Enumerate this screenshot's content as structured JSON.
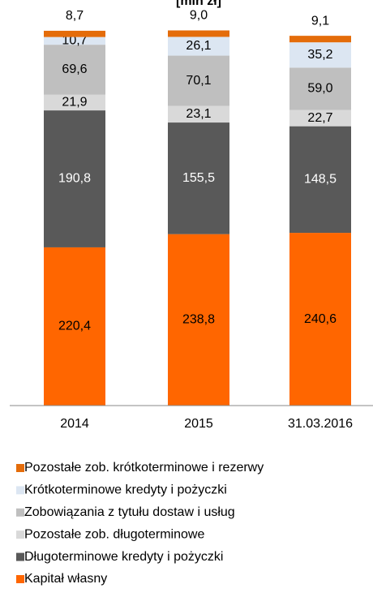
{
  "chart_data": {
    "type": "stacked_bar",
    "title": "[mln zł]",
    "categories": [
      "2014",
      "2015",
      "31.03.2016"
    ],
    "series": [
      {
        "name": "Kapitał własny",
        "color": "#ff6600",
        "values": [
          220.4,
          238.8,
          240.6
        ],
        "value_labels": [
          "220,4",
          "238,8",
          "240,6"
        ]
      },
      {
        "name": "Długoterminowe kredyty i pożyczki",
        "color": "#595959",
        "values": [
          190.8,
          155.5,
          148.5
        ],
        "value_labels": [
          "190,8",
          "155,5",
          "148,5"
        ]
      },
      {
        "name": "Pozostałe zob. długoterminowe",
        "color": "#d9d9d9",
        "values": [
          21.9,
          23.1,
          22.7
        ],
        "value_labels": [
          "21,9",
          "23,1",
          "22,7"
        ]
      },
      {
        "name": "Zobowiązania z tytułu dostaw i usług",
        "color": "#bfbfbf",
        "values": [
          69.6,
          70.1,
          59.0
        ],
        "value_labels": [
          "69,6",
          "70,1",
          "59,0"
        ]
      },
      {
        "name": "Krótkoterminowe kredyty i pożyczki",
        "color": "#dce6f2",
        "values": [
          10.7,
          26.1,
          35.2
        ],
        "value_labels": [
          "10,7",
          "26,1",
          "35,2"
        ]
      },
      {
        "name": "Pozostałe zob. krótkoterminowe i rezerwy",
        "color": "#e46c0a",
        "values": [
          8.7,
          9.0,
          9.1
        ],
        "value_labels": [
          "8,7",
          "9,0",
          "9,1"
        ]
      }
    ],
    "ylim": [
      0,
      540
    ],
    "legend": "bottom"
  }
}
